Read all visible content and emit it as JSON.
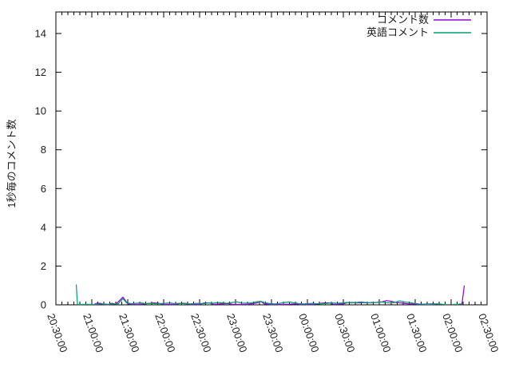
{
  "figure": {
    "background": "#ffffff",
    "border_color": "#000000",
    "text_color": "#1a1a1a"
  },
  "chart_data": {
    "type": "line",
    "title": "",
    "xlabel": "",
    "ylabel": "1秒毎のコメント数",
    "ylim": [
      0,
      15
    ],
    "y_ticks": [
      0,
      2,
      4,
      6,
      8,
      10,
      12,
      14
    ],
    "x_tick_labels": [
      "20:30:00",
      "21:00:00",
      "21:30:00",
      "22:00:00",
      "22:30:00",
      "23:00:00",
      "23:30:00",
      "00:00:00",
      "00:30:00",
      "01:00:00",
      "01:30:00",
      "02:00:00",
      "02:30:00"
    ],
    "x_major_tick_minutes": 30,
    "x_minor_tick_minutes": 5,
    "grid": false,
    "legend": {
      "position": "top-right-inside",
      "entries": [
        {
          "label": "コメント数",
          "color": "#9400d3"
        },
        {
          "label": "英語コメント",
          "color": "#009e73"
        }
      ]
    },
    "series": [
      {
        "name": "コメント数",
        "color": "#9400d3",
        "segments": [
          [
            [
              "21:02",
              0.02
            ],
            [
              "21:04",
              0.08
            ],
            [
              "21:07",
              0.08
            ],
            [
              "21:10",
              0.02
            ],
            [
              "21:14",
              0.02
            ],
            [
              "21:17",
              0.08
            ],
            [
              "21:20",
              0.03
            ],
            [
              "21:26",
              0.4
            ],
            [
              "21:30",
              0.05
            ],
            [
              "21:34",
              0.02
            ],
            [
              "21:40",
              0.02
            ],
            [
              "21:48",
              0.08
            ],
            [
              "21:52",
              0.1
            ],
            [
              "21:56",
              0.08
            ],
            [
              "22:00",
              0.02
            ],
            [
              "22:10",
              0.02
            ],
            [
              "22:14",
              0.08
            ],
            [
              "22:18",
              0.08
            ],
            [
              "22:22",
              0.02
            ],
            [
              "22:30",
              0.02
            ],
            [
              "22:34",
              0.1
            ],
            [
              "22:38",
              0.1
            ],
            [
              "22:42",
              0.02
            ],
            [
              "22:50",
              0.06
            ],
            [
              "22:54",
              0.06
            ],
            [
              "22:58",
              0.02
            ],
            [
              "23:10",
              0.02
            ],
            [
              "23:18",
              0.1
            ],
            [
              "23:21",
              0.18
            ],
            [
              "23:24",
              0.05
            ],
            [
              "23:30",
              0.02
            ],
            [
              "23:40",
              0.02
            ],
            [
              "23:50",
              0.05
            ],
            [
              "23:54",
              0.02
            ],
            [
              "00:05",
              0.02
            ],
            [
              "00:14",
              0.1
            ],
            [
              "00:18",
              0.1
            ],
            [
              "00:22",
              0.02
            ],
            [
              "00:30",
              0.05
            ],
            [
              "00:34",
              0.12
            ],
            [
              "00:38",
              0.12
            ],
            [
              "00:42",
              0.1
            ],
            [
              "00:46",
              0.12
            ],
            [
              "00:50",
              0.1
            ],
            [
              "00:54",
              0.12
            ],
            [
              "00:58",
              0.12
            ],
            [
              "01:02",
              0.15
            ],
            [
              "01:06",
              0.22
            ],
            [
              "01:10",
              0.18
            ],
            [
              "01:14",
              0.12
            ],
            [
              "01:18",
              0.1
            ],
            [
              "01:24",
              0.05
            ],
            [
              "01:28",
              0.05
            ],
            [
              "01:32",
              0.02
            ],
            [
              "01:44",
              0.05
            ],
            [
              "01:48",
              0.05
            ],
            [
              "01:50",
              0.02
            ]
          ],
          [
            [
              "02:09",
              0.02
            ],
            [
              "02:10",
              0.5
            ],
            [
              "02:11",
              1.0
            ]
          ]
        ]
      },
      {
        "name": "英語コメント",
        "color": "#009e73",
        "segments": [
          [
            [
              "20:47",
              1.05
            ],
            [
              "20:48",
              0.02
            ],
            [
              "20:52",
              0.02
            ],
            [
              "20:56",
              0.03
            ],
            [
              "21:00",
              0.02
            ],
            [
              "21:05",
              0.03
            ],
            [
              "21:10",
              0.05
            ],
            [
              "21:14",
              0.03
            ],
            [
              "21:18",
              0.05
            ],
            [
              "21:22",
              0.05
            ],
            [
              "21:26",
              0.32
            ],
            [
              "21:29",
              0.1
            ],
            [
              "21:33",
              0.06
            ],
            [
              "21:37",
              0.08
            ],
            [
              "21:41",
              0.1
            ],
            [
              "21:45",
              0.06
            ],
            [
              "21:49",
              0.08
            ],
            [
              "21:53",
              0.06
            ],
            [
              "21:57",
              0.06
            ],
            [
              "22:01",
              0.08
            ],
            [
              "22:05",
              0.1
            ],
            [
              "22:09",
              0.06
            ],
            [
              "22:13",
              0.08
            ],
            [
              "22:17",
              0.06
            ],
            [
              "22:21",
              0.05
            ],
            [
              "22:25",
              0.06
            ],
            [
              "22:29",
              0.08
            ],
            [
              "22:33",
              0.06
            ],
            [
              "22:37",
              0.1
            ],
            [
              "22:41",
              0.08
            ],
            [
              "22:45",
              0.12
            ],
            [
              "22:49",
              0.1
            ],
            [
              "22:53",
              0.08
            ],
            [
              "22:57",
              0.12
            ],
            [
              "23:01",
              0.15
            ],
            [
              "23:05",
              0.1
            ],
            [
              "23:09",
              0.08
            ],
            [
              "23:13",
              0.1
            ],
            [
              "23:17",
              0.15
            ],
            [
              "23:21",
              0.18
            ],
            [
              "23:25",
              0.1
            ],
            [
              "23:29",
              0.06
            ],
            [
              "23:33",
              0.05
            ],
            [
              "23:37",
              0.08
            ],
            [
              "23:41",
              0.12
            ],
            [
              "23:45",
              0.15
            ],
            [
              "23:49",
              0.1
            ],
            [
              "23:53",
              0.06
            ],
            [
              "23:57",
              0.05
            ],
            [
              "00:01",
              0.06
            ],
            [
              "00:05",
              0.08
            ],
            [
              "00:09",
              0.05
            ],
            [
              "00:13",
              0.06
            ],
            [
              "00:17",
              0.08
            ],
            [
              "00:21",
              0.1
            ],
            [
              "00:25",
              0.08
            ],
            [
              "00:29",
              0.1
            ],
            [
              "00:33",
              0.12
            ],
            [
              "00:37",
              0.1
            ],
            [
              "00:41",
              0.12
            ],
            [
              "00:45",
              0.15
            ],
            [
              "00:49",
              0.12
            ],
            [
              "00:53",
              0.1
            ],
            [
              "00:57",
              0.12
            ],
            [
              "01:01",
              0.15
            ],
            [
              "01:05",
              0.12
            ],
            [
              "01:09",
              0.1
            ],
            [
              "01:13",
              0.12
            ],
            [
              "01:17",
              0.2
            ],
            [
              "01:21",
              0.15
            ],
            [
              "01:25",
              0.12
            ],
            [
              "01:29",
              0.08
            ],
            [
              "01:33",
              0.05
            ],
            [
              "01:37",
              0.03
            ],
            [
              "01:41",
              0.02
            ],
            [
              "01:45",
              0.03
            ],
            [
              "01:49",
              0.05
            ],
            [
              "01:53",
              0.03
            ],
            [
              "01:56",
              0.02
            ]
          ],
          [
            [
              "02:02",
              0.03
            ],
            [
              "02:05",
              0.02
            ],
            [
              "02:08",
              0.05
            ],
            [
              "02:09",
              0.02
            ]
          ]
        ]
      }
    ]
  }
}
